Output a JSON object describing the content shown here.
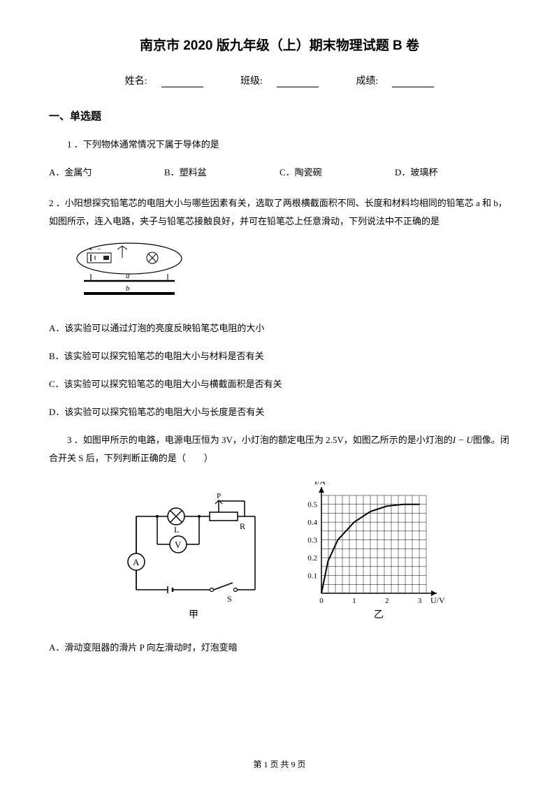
{
  "title": "南京市 2020 版九年级（上）期末物理试题 B 卷",
  "info": {
    "name_label": "姓名:",
    "class_label": "班级:",
    "score_label": "成绩:"
  },
  "section1": {
    "title": "一、单选题"
  },
  "q1": {
    "text": "1 ．下列物体通常情况下属于导体的是",
    "optA": "A．金属勺",
    "optB": "B．塑料盆",
    "optC": "C．陶瓷碗",
    "optD": "D．玻璃杯"
  },
  "q2": {
    "text": "2 ．小阳想探究铅笔芯的电阻大小与哪些因素有关，选取了两根横截面积不同、长度和材料均相同的铅笔芯 a 和 b，如图所示，连入电路，夹子与铅笔芯接触良好，并可在铅笔芯上任意滑动，下列说法中不正确的是",
    "optA": "A．该实验可以通过灯泡的亮度反映铅笔芯电阻的大小",
    "optB": "B．该实验可以探究铅笔芯的电阻大小与材料是否有关",
    "optC": "C．该实验可以探究铅笔芯的电阻大小与横截面积是否有关",
    "optD": "D．该实验可以探究铅笔芯的电阻大小与长度是否有关"
  },
  "q3": {
    "text_pre": "3 ．如图甲所示的电路，电源电压恒为 3V，小灯泡的额定电压为 2.5V，如图乙所示的是小灯泡的",
    "text_mid": "图像。闭合开关 S 后，下列判断正确的是（　　）",
    "optA": "A．滑动变阻器的滑片 P 向左滑动时，灯泡变暗",
    "graph": {
      "ylabel": "I/A",
      "xlabel": "U/V",
      "label_jia": "甲",
      "label_yi": "乙",
      "yticks": [
        "0.1",
        "0.2",
        "0.3",
        "0.4",
        "0.5"
      ],
      "xticks": [
        "0",
        "1",
        "2",
        "3"
      ],
      "curve_points": [
        [
          0,
          0
        ],
        [
          0.2,
          0.18
        ],
        [
          0.5,
          0.3
        ],
        [
          1,
          0.4
        ],
        [
          1.5,
          0.46
        ],
        [
          2,
          0.49
        ],
        [
          2.5,
          0.5
        ],
        [
          3,
          0.5
        ]
      ],
      "ylim": [
        0,
        0.55
      ],
      "xlim": [
        0,
        3.2
      ]
    }
  },
  "footer": "第 1 页 共 9 页"
}
